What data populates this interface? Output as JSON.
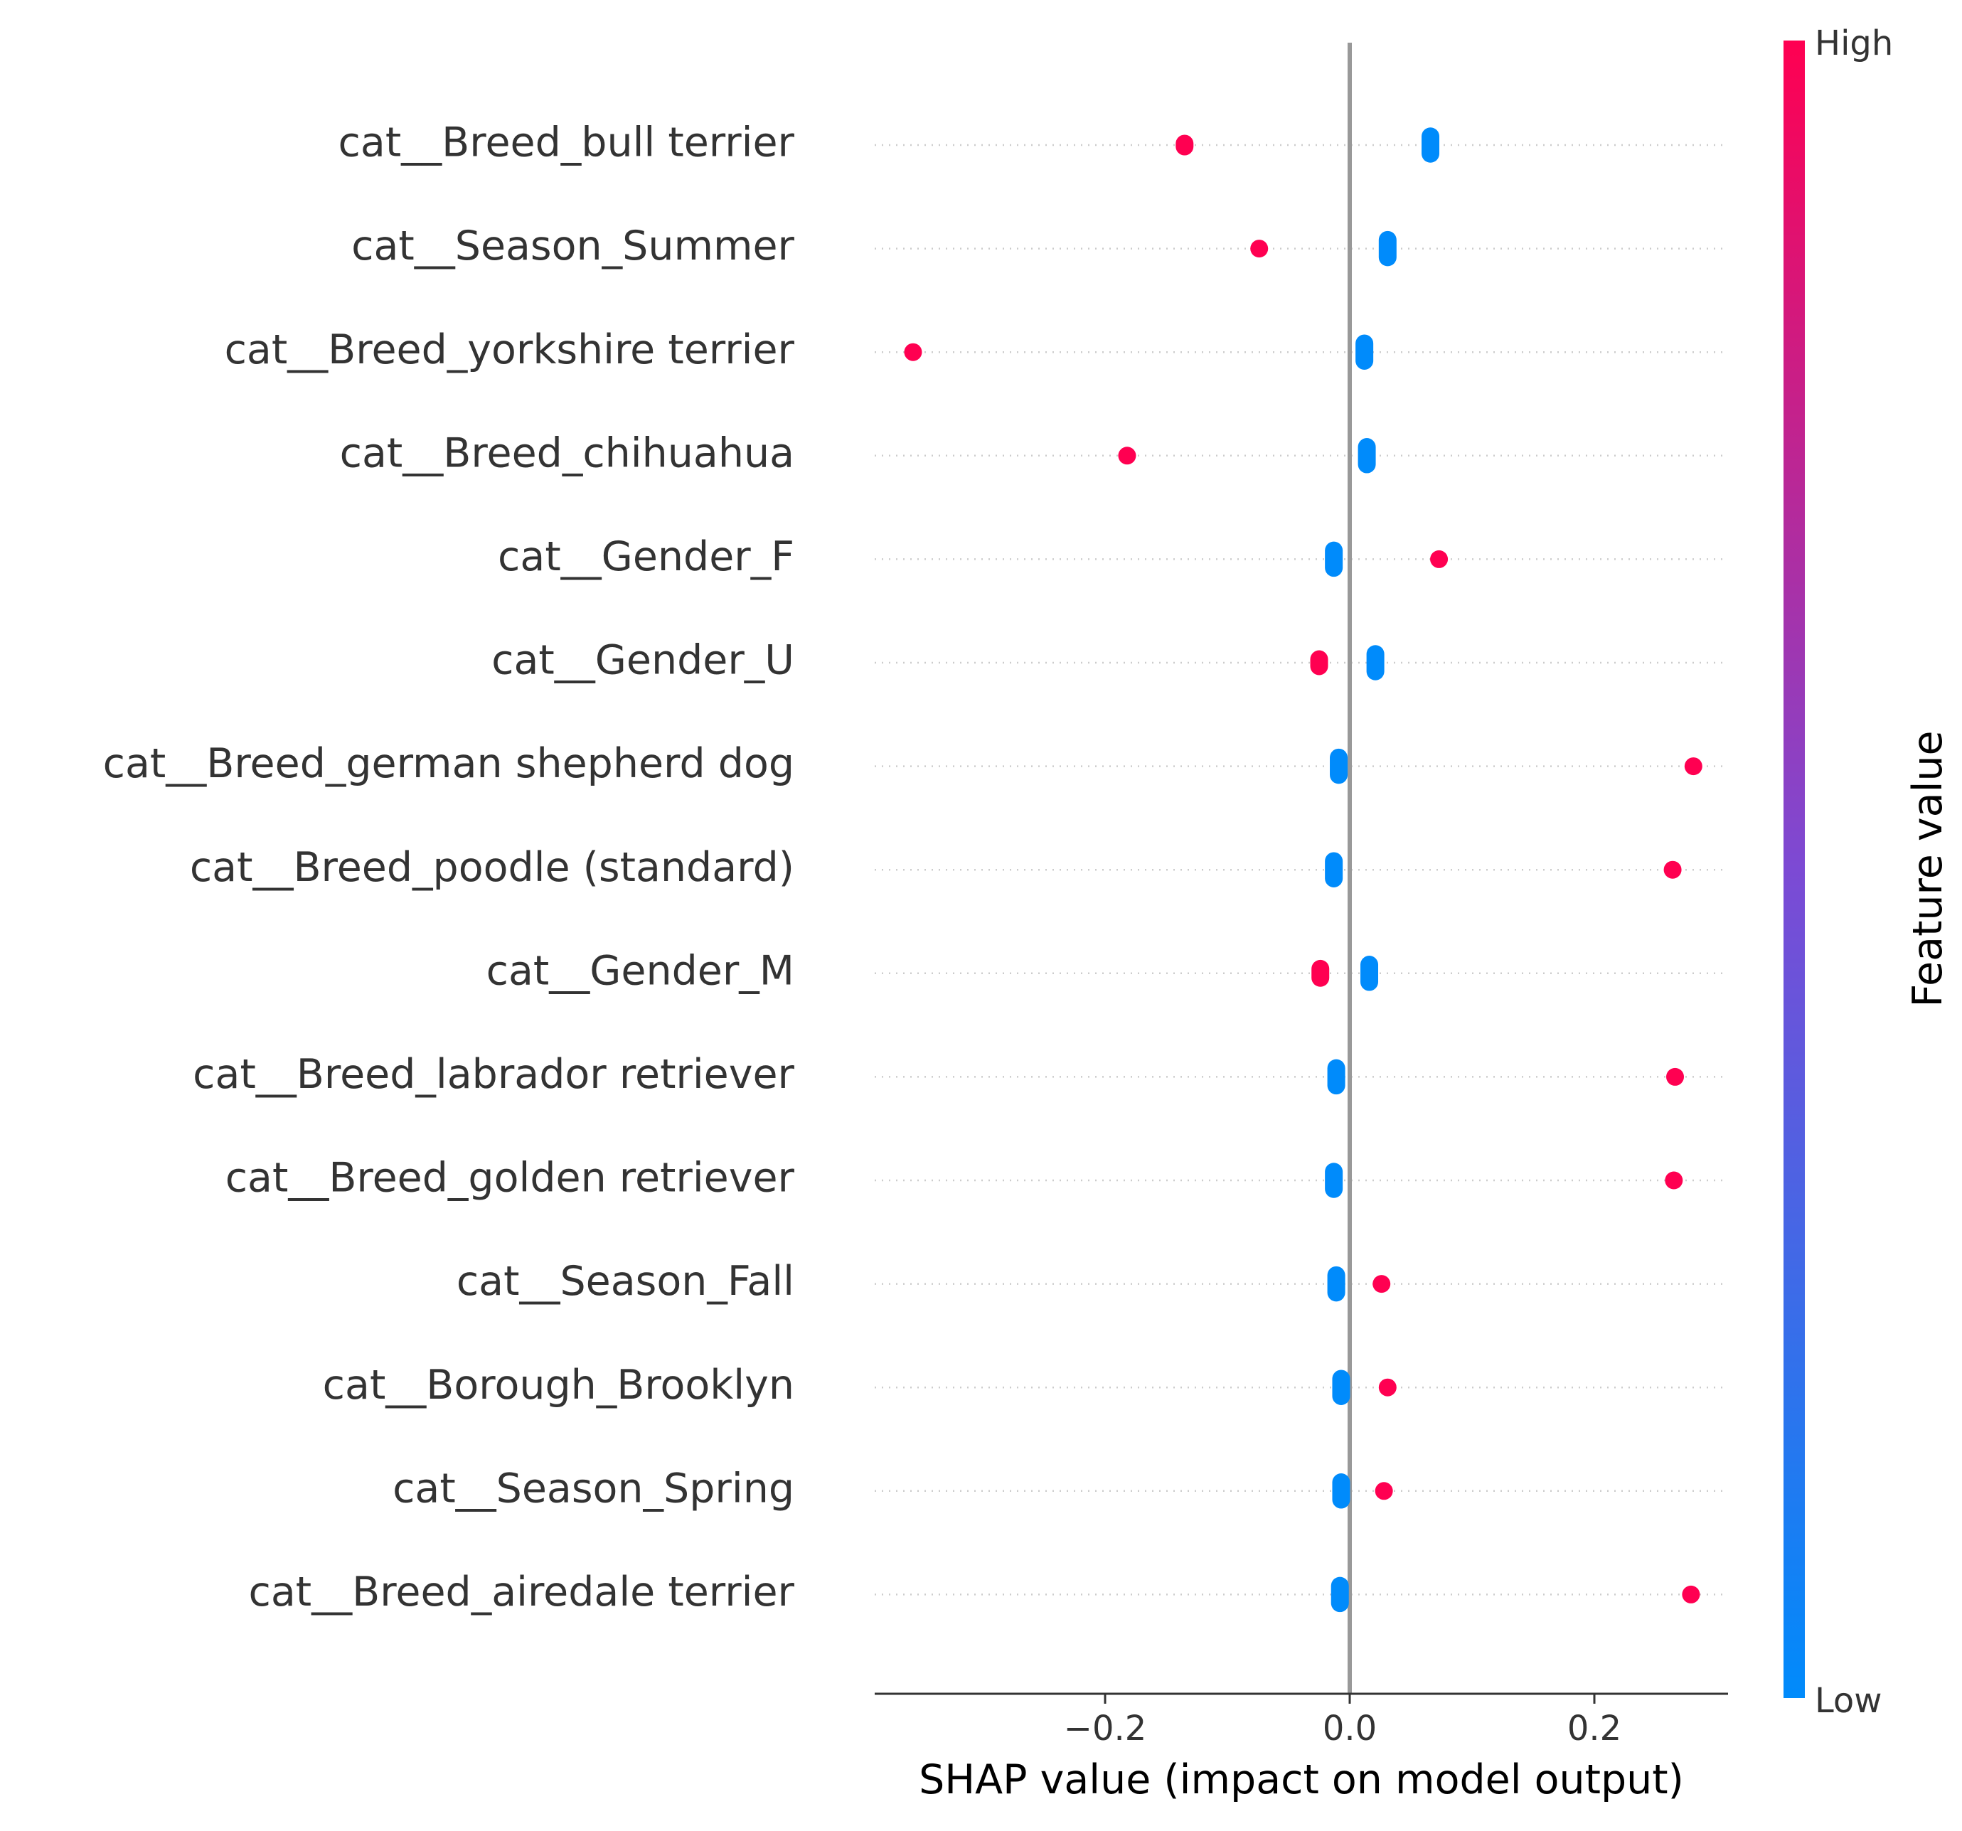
{
  "chart_data": {
    "type": "scatter",
    "subtype": "shap-summary-beeswarm",
    "title": "",
    "xlabel": "SHAP value (impact on model output)",
    "ylabel": "",
    "xlim": [
      -0.39,
      0.31
    ],
    "xticks": [
      {
        "value": -0.2,
        "label": "−0.2"
      },
      {
        "value": 0.0,
        "label": "0.0"
      },
      {
        "value": 0.2,
        "label": "0.2"
      }
    ],
    "zero_line": true,
    "grid": false,
    "colorbar": {
      "title": "Feature value",
      "high_label": "High",
      "low_label": "Low",
      "low_color": "#008bfb",
      "mid_color": "#7c4ad4",
      "high_color": "#ff0051"
    },
    "features": [
      {
        "name": "cat__Breed_bull terrier",
        "low": {
          "value": 0.066,
          "spread": 0.34
        },
        "high": {
          "value": -0.135,
          "spread": 0.2
        }
      },
      {
        "name": "cat__Season_Summer",
        "low": {
          "value": 0.031,
          "spread": 0.34
        },
        "high": {
          "value": -0.074,
          "spread": 0.17
        }
      },
      {
        "name": "cat__Breed_yorkshire terrier",
        "low": {
          "value": 0.012,
          "spread": 0.34
        },
        "high": {
          "value": -0.357,
          "spread": 0.03
        }
      },
      {
        "name": "cat__Breed_chihuahua",
        "low": {
          "value": 0.014,
          "spread": 0.34
        },
        "high": {
          "value": -0.182,
          "spread": 0.03
        }
      },
      {
        "name": "cat__Gender_F",
        "low": {
          "value": -0.013,
          "spread": 0.34
        },
        "high": {
          "value": 0.073,
          "spread": 0.12
        }
      },
      {
        "name": "cat__Gender_U",
        "low": {
          "value": 0.021,
          "spread": 0.34
        },
        "high": {
          "value": -0.025,
          "spread": 0.24
        }
      },
      {
        "name": "cat__Breed_german shepherd dog",
        "low": {
          "value": -0.009,
          "spread": 0.34
        },
        "high": {
          "value": 0.281,
          "spread": 0.03
        }
      },
      {
        "name": "cat__Breed_poodle (standard)",
        "low": {
          "value": -0.013,
          "spread": 0.34
        },
        "high": {
          "value": 0.264,
          "spread": 0.03
        }
      },
      {
        "name": "cat__Gender_M",
        "low": {
          "value": 0.016,
          "spread": 0.34
        },
        "high": {
          "value": -0.024,
          "spread": 0.26
        }
      },
      {
        "name": "cat__Breed_labrador retriever",
        "low": {
          "value": -0.011,
          "spread": 0.34
        },
        "high": {
          "value": 0.266,
          "spread": 0.03
        }
      },
      {
        "name": "cat__Breed_golden retriever",
        "low": {
          "value": -0.013,
          "spread": 0.34
        },
        "high": {
          "value": 0.265,
          "spread": 0.03
        }
      },
      {
        "name": "cat__Season_Fall",
        "low": {
          "value": -0.011,
          "spread": 0.34
        },
        "high": {
          "value": 0.026,
          "spread": 0.15
        }
      },
      {
        "name": "cat__Borough_Brooklyn",
        "low": {
          "value": -0.007,
          "spread": 0.34
        },
        "high": {
          "value": 0.031,
          "spread": 0.15
        }
      },
      {
        "name": "cat__Season_Spring",
        "low": {
          "value": -0.007,
          "spread": 0.34
        },
        "high": {
          "value": 0.028,
          "spread": 0.15
        }
      },
      {
        "name": "cat__Breed_airedale terrier",
        "low": {
          "value": -0.008,
          "spread": 0.34
        },
        "high": {
          "value": 0.279,
          "spread": 0.03
        }
      }
    ]
  }
}
